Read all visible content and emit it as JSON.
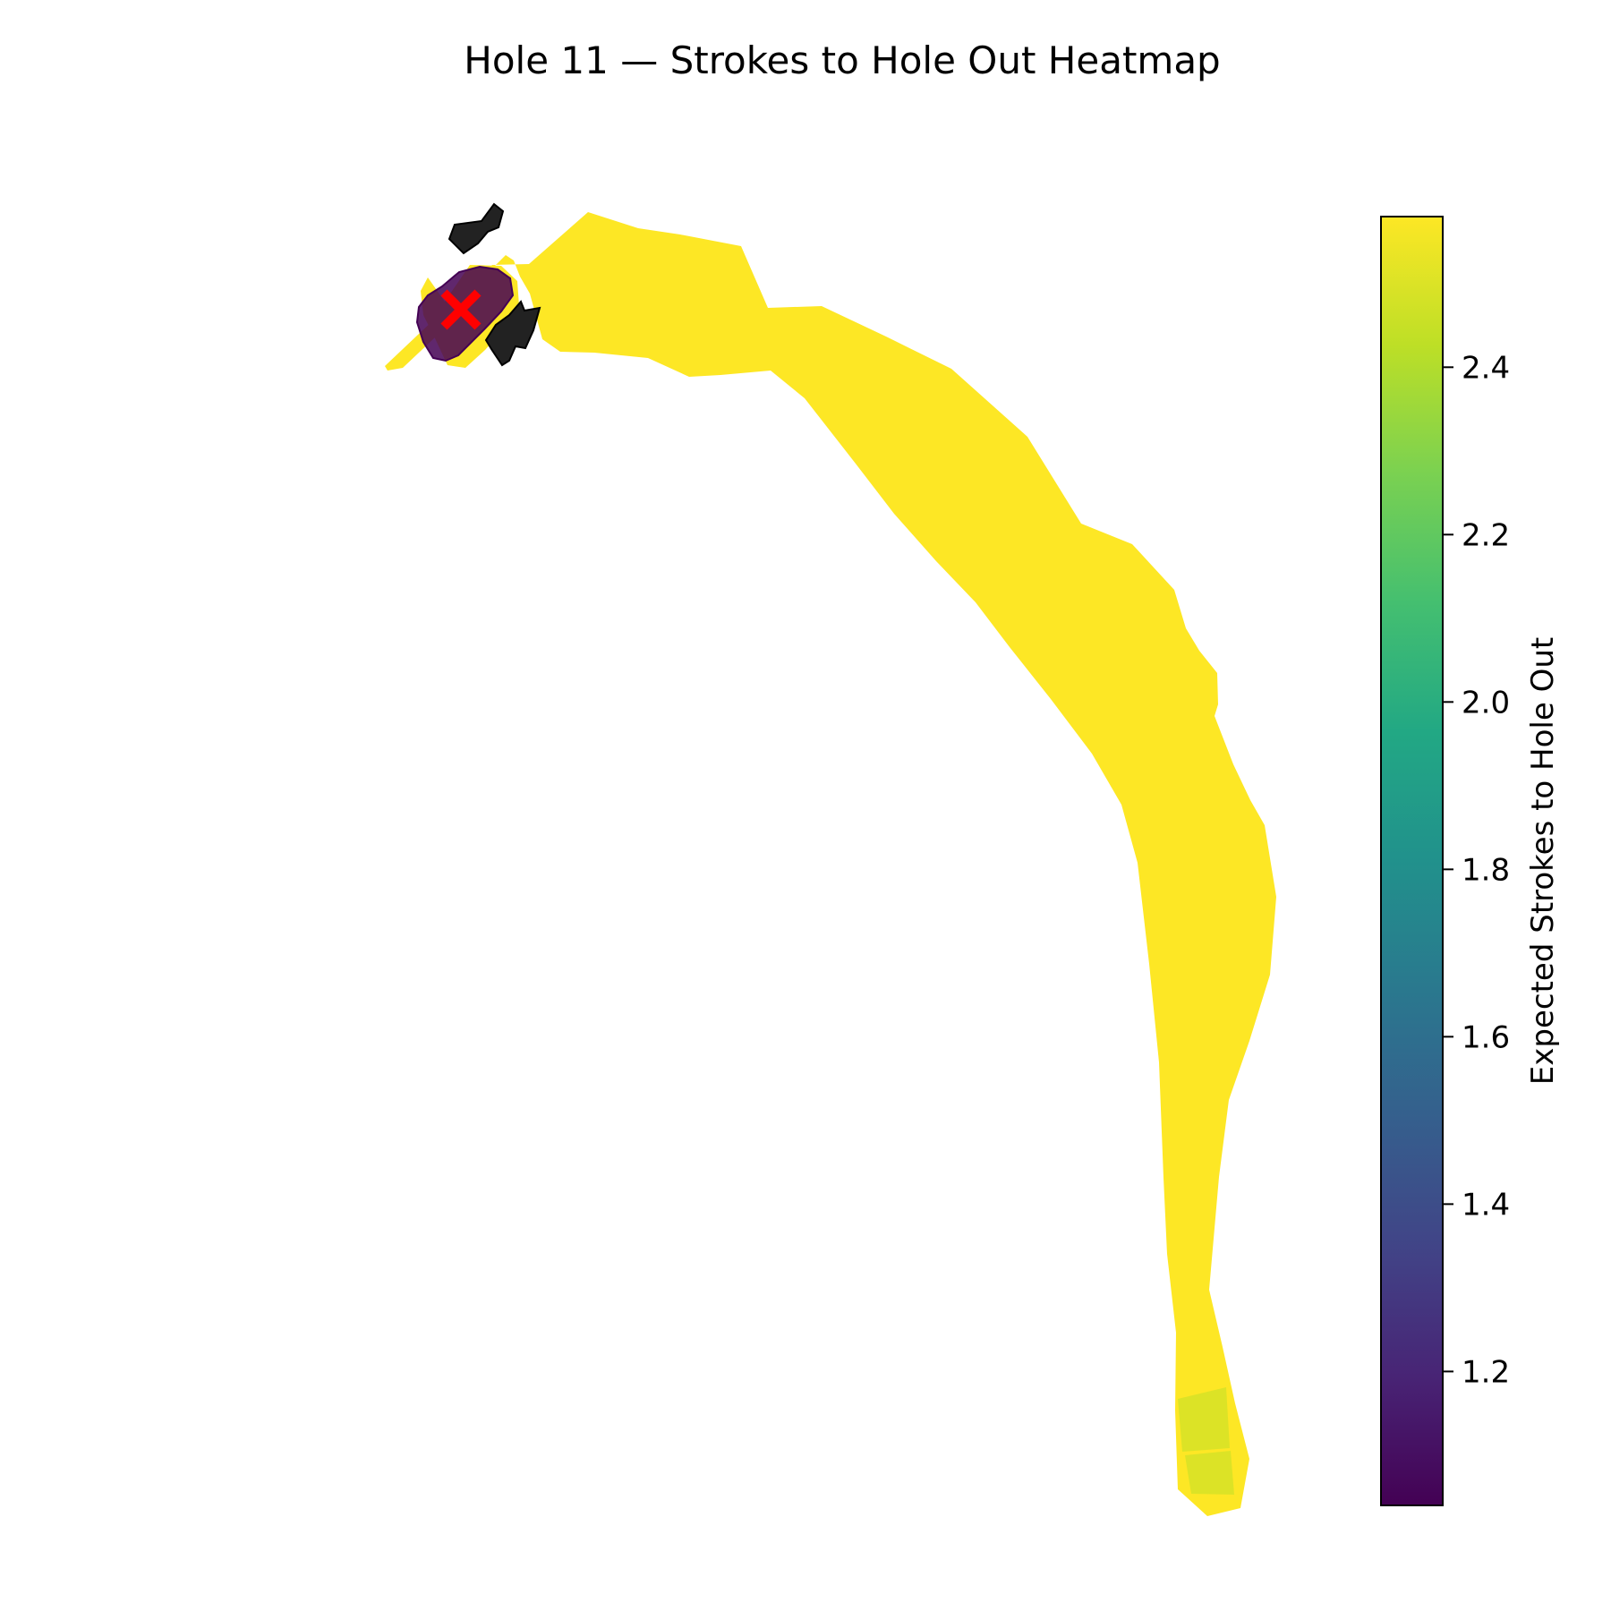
{
  "chart_data": {
    "type": "heatmap",
    "title": "Hole 11 — Strokes to Hole Out Heatmap",
    "colormap": "viridis",
    "colorbar": {
      "label": "Expected Strokes to Hole Out",
      "range": [
        1.04,
        2.58
      ],
      "ticks": [
        1.2,
        1.4,
        1.6,
        1.8,
        2.0,
        2.2,
        2.4
      ],
      "tick_labels": [
        "1.2",
        "1.4",
        "1.6",
        "1.8",
        "2.0",
        "2.2",
        "2.4"
      ]
    },
    "regions": [
      {
        "kind": "fairway",
        "value": 2.58
      },
      {
        "kind": "tee-box",
        "value": 2.5
      },
      {
        "kind": "tee-box",
        "value": 2.5
      },
      {
        "kind": "green",
        "value": 1.04
      },
      {
        "kind": "bunker",
        "color": "#222222"
      },
      {
        "kind": "bunker",
        "color": "#222222"
      }
    ],
    "markers": [
      {
        "kind": "pin",
        "symbol": "x",
        "color": "#ff0000"
      }
    ]
  }
}
